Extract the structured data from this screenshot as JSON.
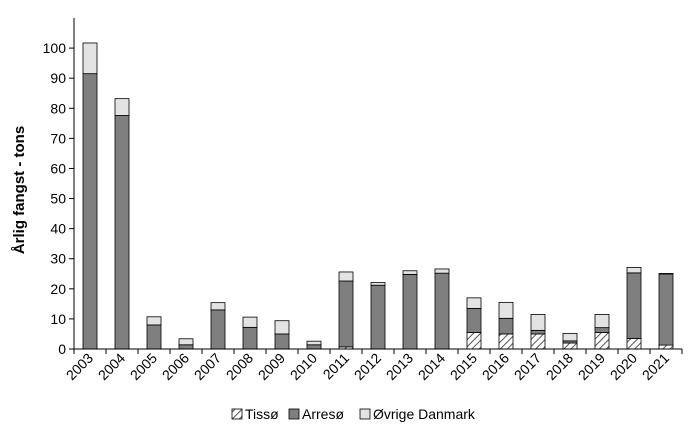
{
  "chart_data": {
    "type": "bar",
    "stacked": true,
    "title": "",
    "xlabel": "",
    "ylabel": "Årlig fangst - tons",
    "ylim": [
      0,
      110
    ],
    "yticks": [
      0,
      10,
      20,
      30,
      40,
      50,
      60,
      70,
      80,
      90,
      100
    ],
    "grid": false,
    "legend_position": "bottom",
    "categories": [
      "2003",
      "2004",
      "2005",
      "2006",
      "2007",
      "2008",
      "2009",
      "2010",
      "2011",
      "2012",
      "2013",
      "2014",
      "2015",
      "2016",
      "2017",
      "2018",
      "2019",
      "2020",
      "2021"
    ],
    "series": [
      {
        "name": "Tissø",
        "pattern": "hatched",
        "color": "#ffffff",
        "values": [
          0,
          0,
          0,
          0,
          0,
          0,
          0,
          0,
          0.7,
          0,
          0,
          0,
          5.5,
          5.0,
          5.0,
          2.0,
          5.5,
          3.5,
          1.3
        ]
      },
      {
        "name": "Arresø",
        "pattern": "solid",
        "color": "#7f7f7f",
        "values": [
          91.5,
          77.6,
          8.0,
          1.4,
          13.0,
          7.2,
          5.0,
          1.4,
          21.9,
          21.2,
          24.8,
          25.2,
          8.0,
          5.2,
          1.2,
          0.7,
          1.6,
          21.8,
          23.6
        ]
      },
      {
        "name": "Øvrige Danmark",
        "pattern": "solid",
        "color": "#e3e3e3",
        "values": [
          10.2,
          5.6,
          2.7,
          2.0,
          2.4,
          3.4,
          4.4,
          1.2,
          3.0,
          0.9,
          1.2,
          1.4,
          3.5,
          5.3,
          5.3,
          2.5,
          4.4,
          1.8,
          0.2
        ]
      }
    ]
  }
}
